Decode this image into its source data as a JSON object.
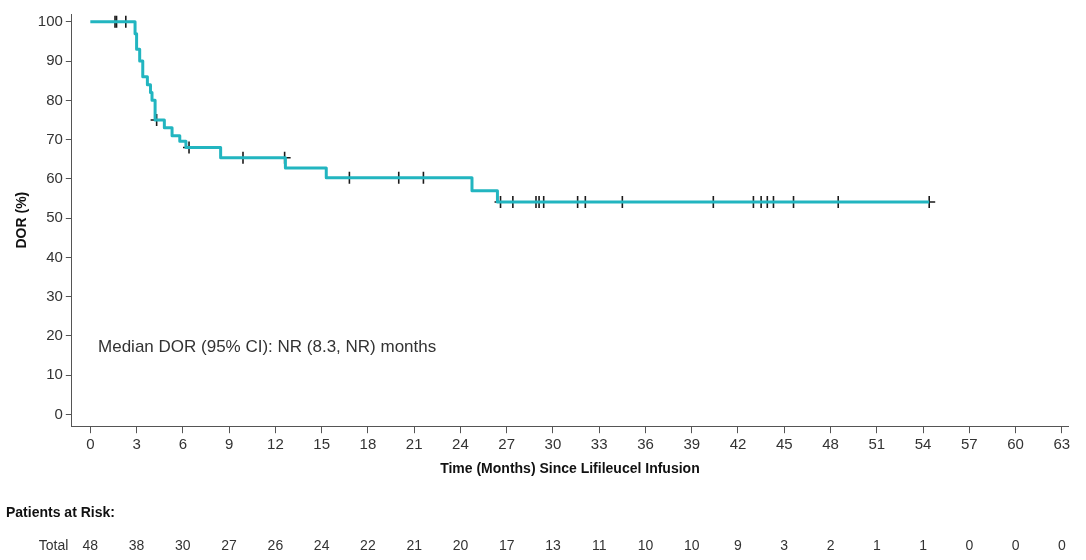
{
  "chart_data": {
    "type": "step",
    "xlabel": "Time (Months) Since Lifileucel Infusion",
    "ylabel": "DOR (%)",
    "xlim": [
      -1.2,
      63.4
    ],
    "xticks": [
      0,
      3,
      6,
      9,
      12,
      15,
      18,
      21,
      24,
      27,
      30,
      33,
      36,
      39,
      42,
      45,
      48,
      51,
      54,
      57,
      60,
      63
    ],
    "ylim": [
      -3,
      102
    ],
    "yticks": [
      0,
      10,
      20,
      30,
      40,
      50,
      60,
      70,
      80,
      90,
      100
    ],
    "grid": false,
    "legend": false,
    "series": [
      {
        "color": "#22b5c0",
        "marker": "none",
        "x": [
          0,
          2.9,
          3.0,
          3.2,
          3.4,
          3.7,
          3.9,
          4.0,
          4.2,
          4.8,
          5.3,
          5.8,
          6.2,
          8.45,
          12.65,
          15.3,
          24.75,
          26.4,
          54.4
        ],
        "values": [
          100,
          97,
          93,
          90,
          86,
          84,
          82,
          80,
          75,
          73,
          71,
          69.6,
          68,
          65.4,
          62.8,
          60.3,
          57,
          54.1,
          54.1
        ]
      },
      {
        "type": "scatter",
        "color": "#1a1a1a",
        "marker": "cross",
        "x": [
          1.6,
          1.7,
          2.3,
          4.3,
          6.4,
          9.9,
          12.6,
          16.8,
          20.0,
          21.6,
          26.6,
          27.4,
          28.9,
          29.1,
          29.4,
          31.6,
          32.1,
          34.5,
          40.4,
          43.0,
          43.5,
          43.9,
          44.3,
          45.6,
          48.5,
          54.4
        ],
        "values": [
          100,
          100,
          100,
          75,
          68,
          65.4,
          65.4,
          60.3,
          60.3,
          60.3,
          54.1,
          54.1,
          54.1,
          54.1,
          54.1,
          54.1,
          54.1,
          54.1,
          54.1,
          54.1,
          54.1,
          54.1,
          54.1,
          54.1,
          54.1,
          54.1
        ]
      }
    ],
    "annotations": [
      "Median DOR (95% CI): NR (8.3, NR) months",
      "Patients at Risk:",
      "Total",
      "48",
      "38",
      "30",
      "27",
      "26",
      "24",
      "22",
      "21",
      "20",
      "17",
      "13",
      "11",
      "10",
      "10",
      "9",
      "3",
      "2",
      "1",
      "1",
      "0",
      "0",
      "0"
    ]
  }
}
